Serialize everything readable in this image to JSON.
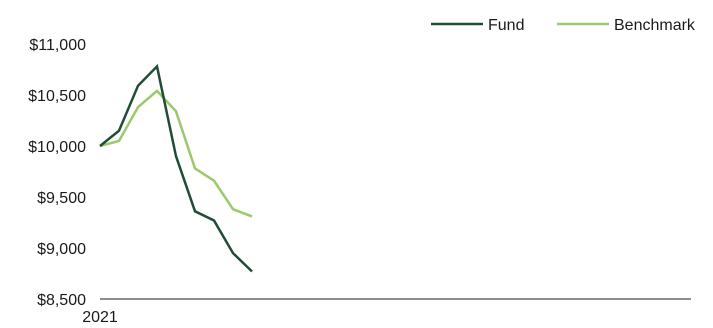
{
  "chart_data": {
    "type": "line",
    "title": "",
    "xlabel": "",
    "ylabel": "",
    "x_tick_labels": [
      "2021"
    ],
    "y_tick_labels": [
      "$11,000",
      "$10,500",
      "$10,000",
      "$9,500",
      "$9,000",
      "$8,500"
    ],
    "ylim": [
      8500,
      11000
    ],
    "grid": false,
    "legend_placement": "top-right",
    "series": [
      {
        "name": "Fund",
        "color": "#1f4d36",
        "values": [
          10000,
          10150,
          10590,
          10780,
          9900,
          9360,
          9270,
          8950,
          8770
        ]
      },
      {
        "name": "Benchmark",
        "color": "#9cc96b",
        "values": [
          10000,
          10050,
          10380,
          10540,
          10340,
          9780,
          9660,
          9380,
          9310
        ]
      }
    ]
  }
}
